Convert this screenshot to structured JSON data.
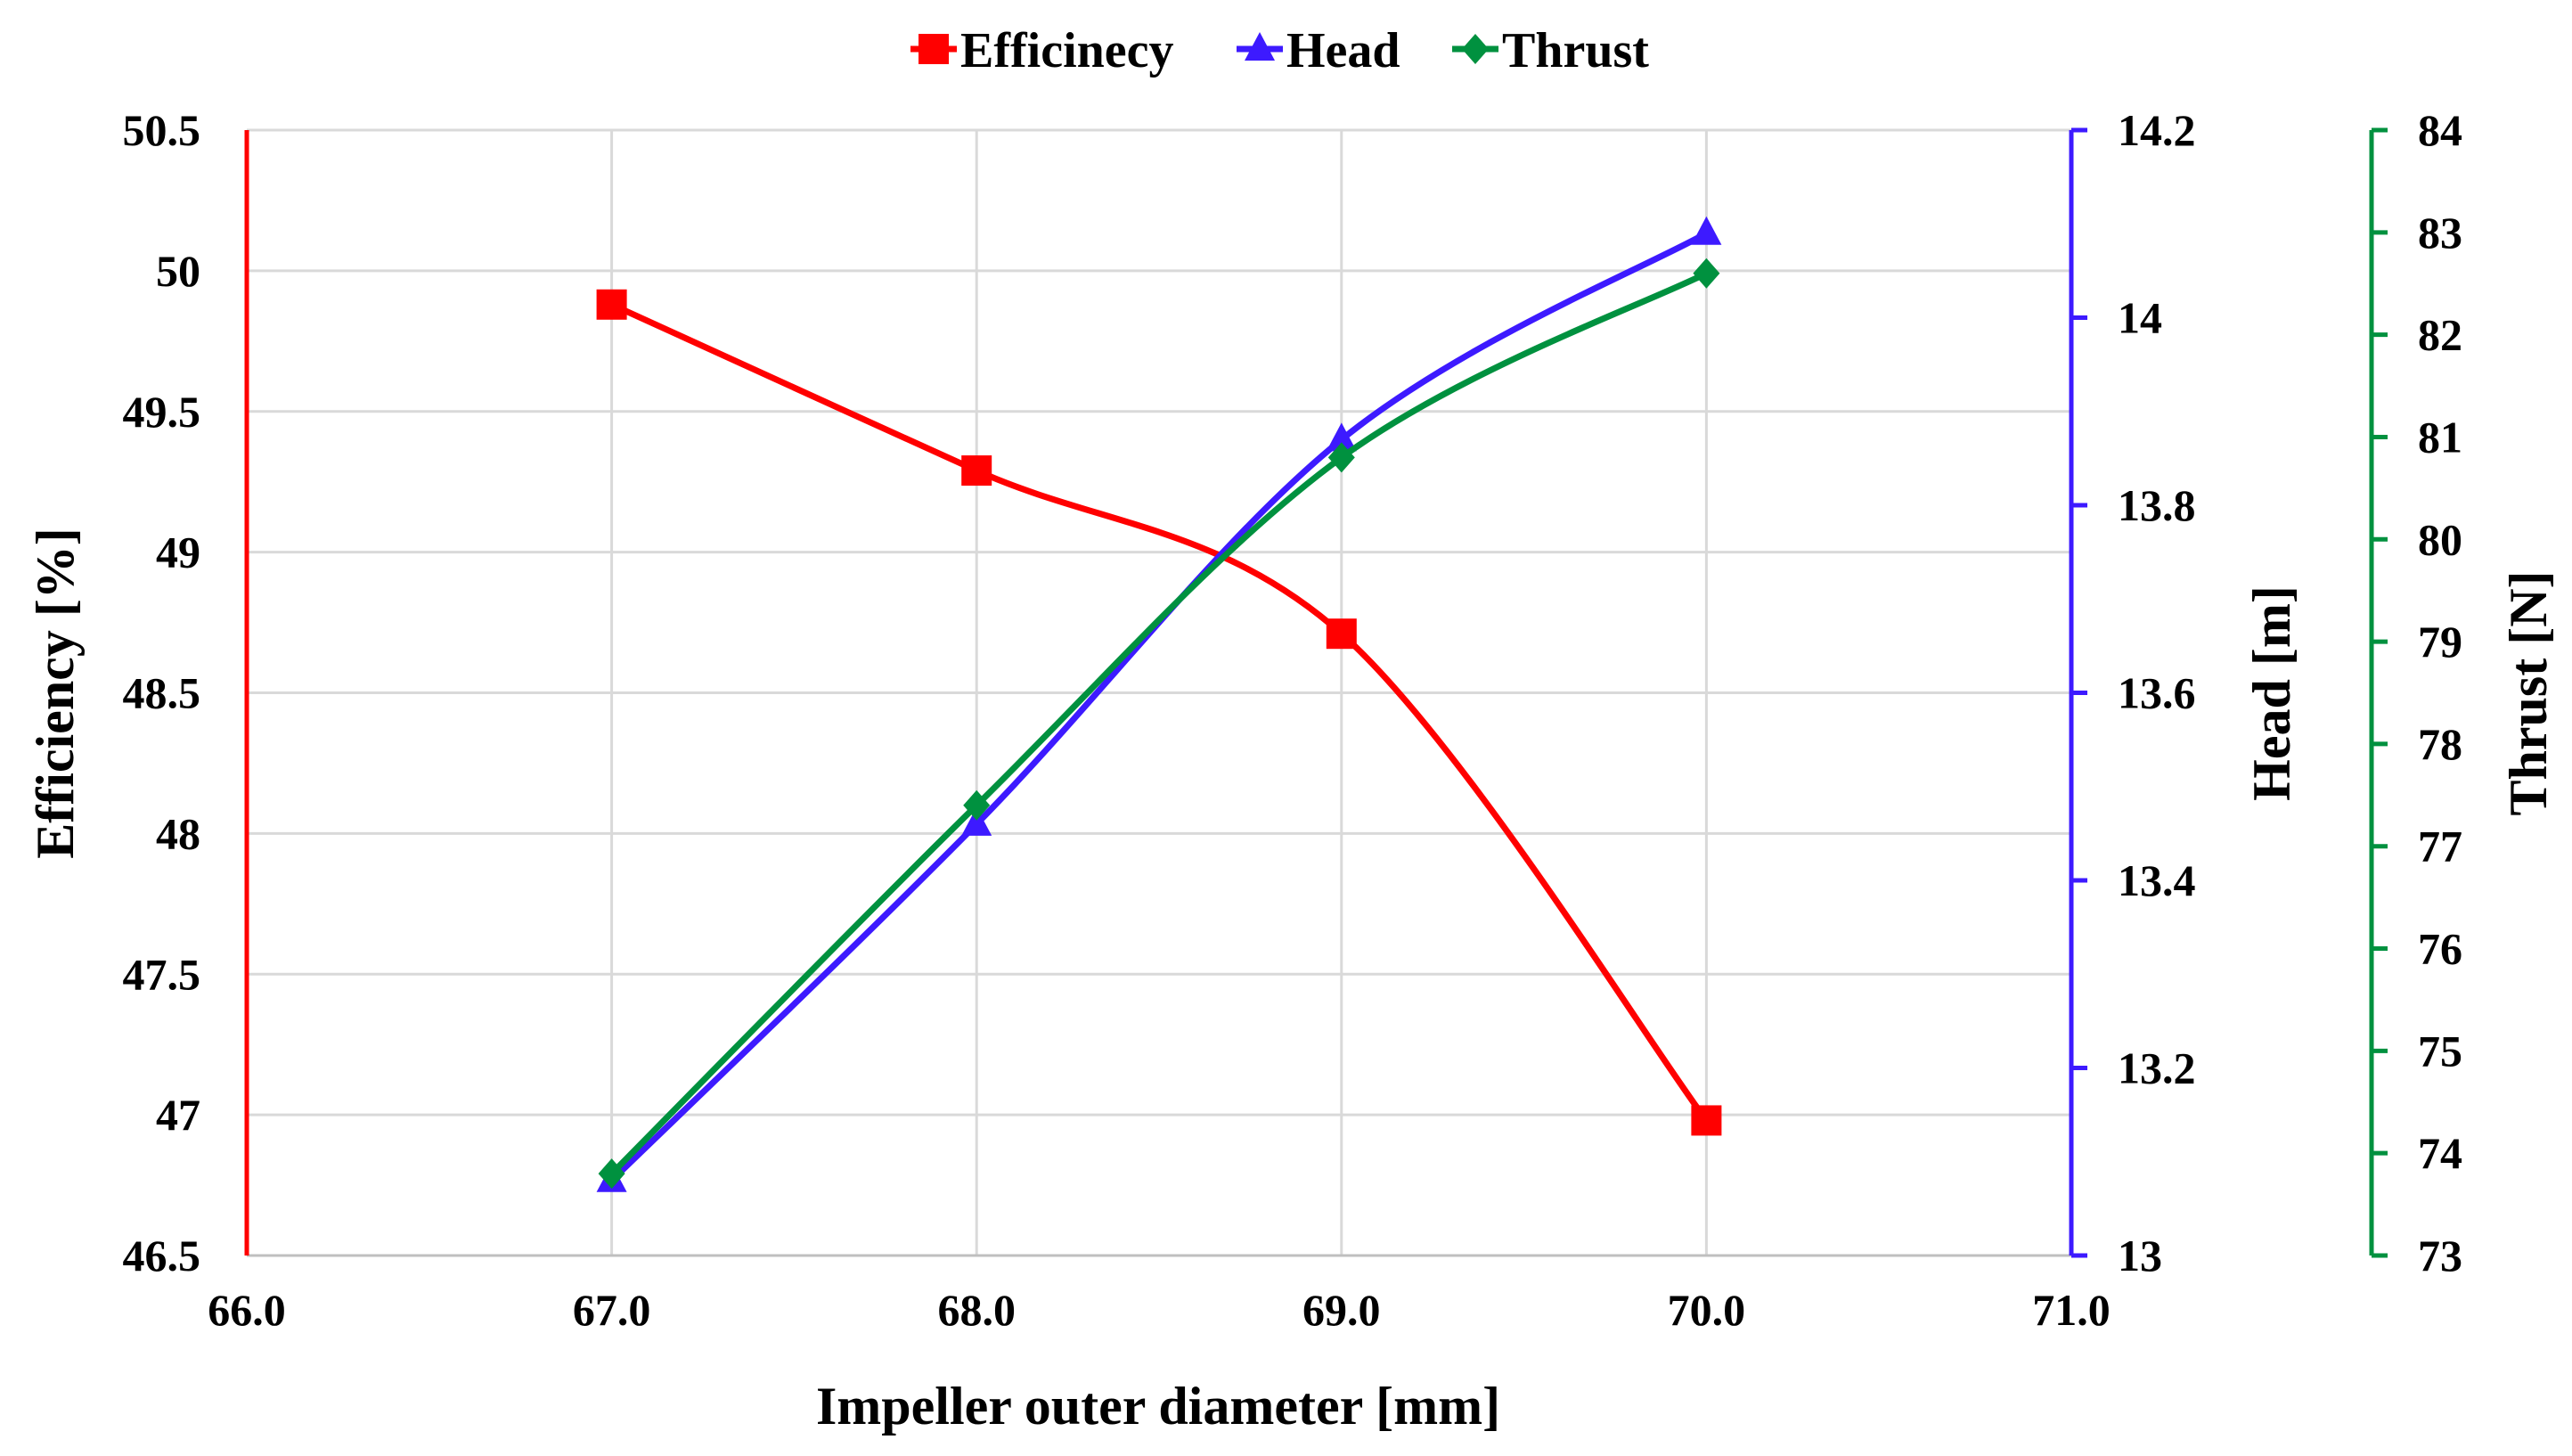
{
  "chart_data": {
    "type": "line",
    "title": "",
    "xlabel": "Impeller outer diameter [mm]",
    "xlim": [
      66.0,
      71.0
    ],
    "x_ticks": [
      "66.0",
      "67.0",
      "68.0",
      "69.0",
      "70.0",
      "71.0"
    ],
    "x": [
      67.0,
      68.0,
      69.0,
      70.0
    ],
    "legend_position": "top-center",
    "grid": true,
    "axes": {
      "left": {
        "label": "Efficiency [%]",
        "lim": [
          46.5,
          50.5
        ],
        "color": "#ff0000",
        "ticks": [
          "46.5",
          "47",
          "47.5",
          "48",
          "48.5",
          "49",
          "49.5",
          "50",
          "50.5"
        ]
      },
      "right1": {
        "label": "Head [m]",
        "lim": [
          13.0,
          14.2
        ],
        "color": "#3d1aff",
        "ticks": [
          "13",
          "13.2",
          "13.4",
          "13.6",
          "13.8",
          "14",
          "14.2"
        ]
      },
      "right2": {
        "label": "Thrust [N]",
        "lim": [
          73,
          84
        ],
        "color": "#00913f",
        "ticks": [
          "73",
          "74",
          "75",
          "76",
          "77",
          "78",
          "79",
          "80",
          "81",
          "82",
          "83",
          "84"
        ]
      }
    },
    "series": [
      {
        "name": "Efficinecy",
        "axis": "left",
        "marker": "square",
        "color": "#ff0000",
        "values": [
          49.88,
          49.29,
          48.71,
          46.98
        ]
      },
      {
        "name": "Head",
        "axis": "right1",
        "marker": "triangle",
        "color": "#3d1aff",
        "values": [
          13.08,
          13.46,
          13.87,
          14.09
        ]
      },
      {
        "name": "Thrust",
        "axis": "right2",
        "marker": "diamond",
        "color": "#00913f",
        "values": [
          73.8,
          77.4,
          80.8,
          82.6
        ]
      }
    ]
  }
}
